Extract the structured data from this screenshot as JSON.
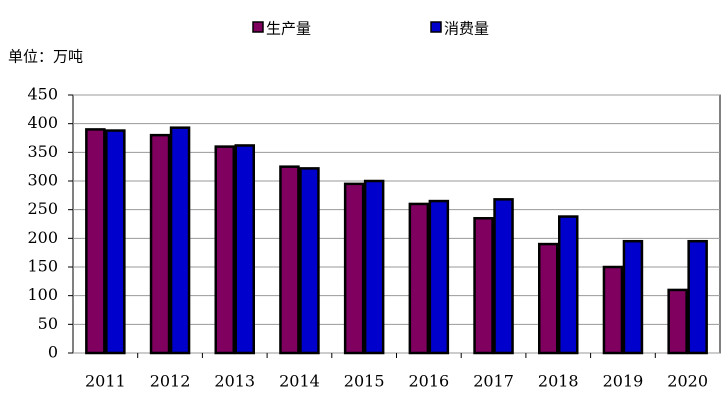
{
  "chart_data": {
    "type": "bar",
    "unit_label": "单位：万吨",
    "categories": [
      "2011",
      "2012",
      "2013",
      "2014",
      "2015",
      "2016",
      "2017",
      "2018",
      "2019",
      "2020"
    ],
    "series": [
      {
        "name": "生产量",
        "color": "#800060",
        "values": [
          390,
          380,
          360,
          325,
          295,
          260,
          235,
          190,
          150,
          110
        ]
      },
      {
        "name": "消费量",
        "color": "#0000cc",
        "values": [
          388,
          393,
          362,
          322,
          300,
          265,
          268,
          238,
          195,
          195
        ]
      }
    ],
    "ylim": [
      0,
      450
    ],
    "yticks": [
      0,
      50,
      100,
      150,
      200,
      250,
      300,
      350,
      400,
      450
    ],
    "grid": true
  }
}
